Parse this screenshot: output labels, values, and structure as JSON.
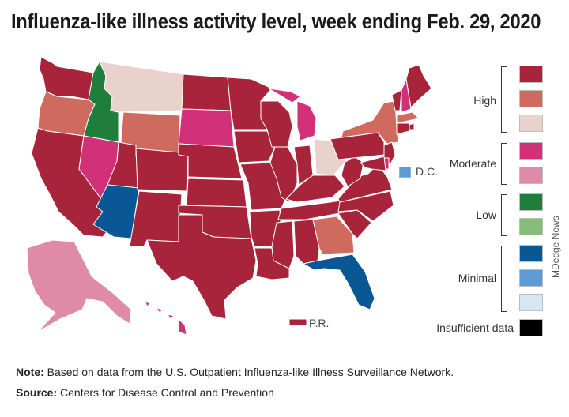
{
  "title": "Influenza-like illness activity level, week ending Feb. 29, 2020",
  "colors": {
    "high_dark": "#a8243a",
    "high_mid": "#cf6a5e",
    "high_light": "#ead2cc",
    "moderate_dark": "#d3307a",
    "moderate_light": "#df8aa6",
    "low_dark": "#1f7e3b",
    "low_light": "#86bd78",
    "minimal_dark": "#0a5796",
    "minimal_mid": "#5e9bd2",
    "minimal_light": "#d6e6f5",
    "insufficient": "#000000"
  },
  "legend": {
    "groups": [
      {
        "label": "High",
        "levels": [
          "high_dark",
          "high_mid",
          "high_light"
        ]
      },
      {
        "label": "Moderate",
        "levels": [
          "moderate_dark",
          "moderate_light"
        ]
      },
      {
        "label": "Low",
        "levels": [
          "low_dark",
          "low_light"
        ]
      },
      {
        "label": "Minimal",
        "levels": [
          "minimal_dark",
          "minimal_mid",
          "minimal_light"
        ]
      }
    ],
    "insufficient_label": "Insufficient data"
  },
  "map_labels": {
    "dc": "D.C.",
    "pr": "P.R."
  },
  "state_levels": {
    "WA": "high_dark",
    "OR": "high_mid",
    "CA": "high_dark",
    "ID": "low_dark",
    "NV": "moderate_dark",
    "MT": "high_light",
    "WY": "high_mid",
    "UT": "high_dark",
    "AZ": "minimal_dark",
    "CO": "high_dark",
    "NM": "high_dark",
    "ND": "high_dark",
    "SD": "moderate_dark",
    "NE": "high_dark",
    "KS": "high_dark",
    "OK": "high_dark",
    "TX": "high_dark",
    "MN": "high_dark",
    "IA": "high_dark",
    "MO": "high_dark",
    "AR": "high_dark",
    "LA": "high_dark",
    "WI": "high_dark",
    "IL": "high_dark",
    "MI": "moderate_dark",
    "IN": "high_dark",
    "OH": "high_light",
    "KY": "high_dark",
    "TN": "high_dark",
    "MS": "high_dark",
    "AL": "high_dark",
    "GA": "high_mid",
    "FL": "minimal_dark",
    "SC": "high_dark",
    "NC": "high_dark",
    "VA": "high_dark",
    "WV": "high_dark",
    "PA": "high_dark",
    "NY": "high_mid",
    "VT": "high_dark",
    "NH": "moderate_dark",
    "ME": "high_dark",
    "MA": "high_mid",
    "RI": "high_dark",
    "CT": "high_dark",
    "NJ": "high_dark",
    "DE": "moderate_dark",
    "MD": "high_dark",
    "AK": "moderate_light",
    "HI": "moderate_dark",
    "DC": "minimal_mid",
    "PR": "high_dark"
  },
  "footer": {
    "note_label": "Note:",
    "note_text": " Based on data from the U.S. Outpatient Influenza-like Illness Surveillance Network.",
    "source_label": "Source:",
    "source_text": " Centers for Disease Control and Prevention"
  },
  "watermark": "MDedge News"
}
